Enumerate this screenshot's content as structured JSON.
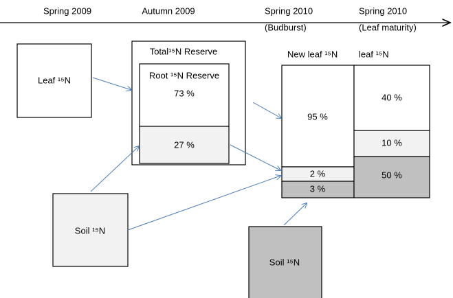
{
  "timeline": [
    {
      "label": "Spring 2009"
    },
    {
      "label": "Autumn 2009"
    },
    {
      "label": "Spring 2010",
      "sublabel": "(Budburst)"
    },
    {
      "label": "Spring 2010",
      "sublabel": "(Leaf maturity)"
    }
  ],
  "nodes": {
    "leaf_2009": {
      "label": "Leaf ¹⁵N"
    },
    "total_reserve": {
      "label": "Total¹⁵N Reserve"
    },
    "root_reserve": {
      "label": "Root ¹⁵N Reserve",
      "top": "73 %",
      "bottom": "27 %"
    },
    "soil_2009": {
      "label": "Soil ¹⁵N"
    },
    "new_leaf": {
      "label": "New leaf ¹⁵N",
      "segments": [
        "95 %",
        "2 %",
        "3 %"
      ]
    },
    "mature_leaf": {
      "label": "leaf ¹⁵N",
      "segments": [
        "40 %",
        "10 %",
        "50 %"
      ]
    },
    "soil_2010": {
      "label": "Soil ¹⁵N"
    }
  }
}
